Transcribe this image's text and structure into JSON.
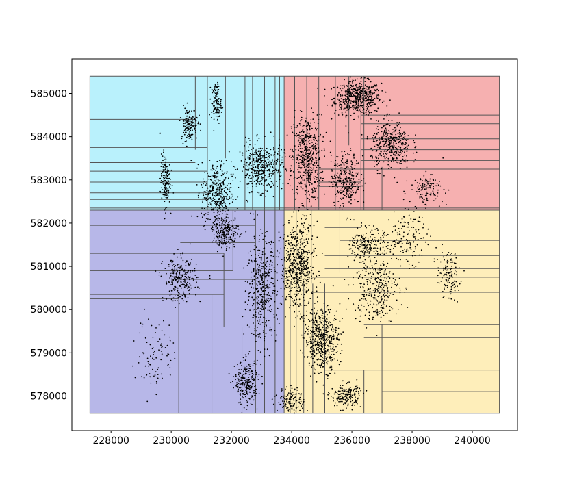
{
  "chart_data": {
    "type": "scatter",
    "title": "",
    "xlabel": "",
    "ylabel": "",
    "xlim": [
      226700,
      241500
    ],
    "ylim": [
      577200,
      585800
    ],
    "grid": false,
    "x_ticks": [
      228000,
      230000,
      232000,
      234000,
      236000,
      238000,
      240000
    ],
    "y_ticks": [
      578000,
      579000,
      580000,
      581000,
      582000,
      583000,
      584000,
      585000
    ],
    "extent": {
      "xmin": 227300,
      "xmax": 240900,
      "ymin": 577600,
      "ymax": 585400
    },
    "split_x": 233750,
    "point_color": "#000000",
    "partition_line_color": "#555555",
    "regions": [
      {
        "name": "upper-left",
        "color": "#7fe6f9",
        "x": [
          227300,
          233750
        ],
        "y": [
          582300,
          585400
        ]
      },
      {
        "name": "lower-left",
        "color": "#7b7bd6",
        "x": [
          227300,
          233750
        ],
        "y": [
          577600,
          582300
        ]
      },
      {
        "name": "upper-right",
        "color": "#ee6f6f",
        "x": [
          233750,
          240900
        ],
        "y": [
          582300,
          585400
        ]
      },
      {
        "name": "lower-right",
        "color": "#fde081",
        "x": [
          233750,
          240900
        ],
        "y": [
          577600,
          582300
        ]
      }
    ],
    "partition_lines": {
      "vertical": [
        {
          "x": 230800,
          "y": [
            583700,
            585400
          ]
        },
        {
          "x": 231200,
          "y": [
            582300,
            585400
          ]
        },
        {
          "x": 231800,
          "y": [
            583500,
            585400
          ]
        },
        {
          "x": 232450,
          "y": [
            582300,
            585400
          ]
        },
        {
          "x": 232700,
          "y": [
            582300,
            585400
          ]
        },
        {
          "x": 233100,
          "y": [
            582300,
            585400
          ]
        },
        {
          "x": 233450,
          "y": [
            582300,
            585400
          ]
        },
        {
          "x": 233600,
          "y": [
            582300,
            585400
          ]
        },
        {
          "x": 234100,
          "y": [
            582300,
            585400
          ]
        },
        {
          "x": 234500,
          "y": [
            582300,
            585400
          ]
        },
        {
          "x": 234900,
          "y": [
            582300,
            585400
          ]
        },
        {
          "x": 235450,
          "y": [
            582300,
            585400
          ]
        },
        {
          "x": 236400,
          "y": [
            582300,
            585400
          ]
        },
        {
          "x": 235900,
          "y": [
            583800,
            585400
          ]
        },
        {
          "x": 236300,
          "y": [
            582300,
            585000
          ]
        },
        {
          "x": 237000,
          "y": [
            582300,
            583300
          ]
        },
        {
          "x": 230250,
          "y": [
            577600,
            580350
          ]
        },
        {
          "x": 231350,
          "y": [
            577600,
            580350
          ]
        },
        {
          "x": 231750,
          "y": [
            579600,
            581300
          ]
        },
        {
          "x": 232050,
          "y": [
            580900,
            582300
          ]
        },
        {
          "x": 232350,
          "y": [
            577600,
            579600
          ]
        },
        {
          "x": 232800,
          "y": [
            577600,
            582300
          ]
        },
        {
          "x": 233100,
          "y": [
            577600,
            582300
          ]
        },
        {
          "x": 233450,
          "y": [
            577600,
            582300
          ]
        },
        {
          "x": 233950,
          "y": [
            577600,
            580600
          ]
        },
        {
          "x": 234150,
          "y": [
            577600,
            582300
          ]
        },
        {
          "x": 234400,
          "y": [
            577600,
            580600
          ]
        },
        {
          "x": 234700,
          "y": [
            577600,
            580600
          ]
        },
        {
          "x": 235100,
          "y": [
            577600,
            580600
          ]
        },
        {
          "x": 234650,
          "y": [
            580600,
            582300
          ]
        },
        {
          "x": 235600,
          "y": [
            580850,
            582300
          ]
        },
        {
          "x": 236400,
          "y": [
            577600,
            578600
          ]
        },
        {
          "x": 237000,
          "y": [
            577600,
            579650
          ]
        }
      ],
      "horizontal": [
        {
          "y": 584400,
          "x": [
            227300,
            230800
          ]
        },
        {
          "y": 583750,
          "x": [
            227300,
            231200
          ]
        },
        {
          "y": 583400,
          "x": [
            227300,
            230800
          ]
        },
        {
          "y": 583200,
          "x": [
            227300,
            231200
          ]
        },
        {
          "y": 582950,
          "x": [
            227300,
            231200
          ]
        },
        {
          "y": 582700,
          "x": [
            227300,
            231200
          ]
        },
        {
          "y": 582550,
          "x": [
            227300,
            231200
          ]
        },
        {
          "y": 582350,
          "x": [
            227300,
            240900
          ]
        },
        {
          "y": 582300,
          "x": [
            227300,
            240900
          ]
        },
        {
          "y": 581950,
          "x": [
            227300,
            232800
          ]
        },
        {
          "y": 581550,
          "x": [
            230300,
            232800
          ]
        },
        {
          "y": 581300,
          "x": [
            227300,
            231750
          ]
        },
        {
          "y": 580900,
          "x": [
            227300,
            232050
          ]
        },
        {
          "y": 580700,
          "x": [
            230000,
            232800
          ]
        },
        {
          "y": 580350,
          "x": [
            227300,
            231750
          ]
        },
        {
          "y": 580250,
          "x": [
            227300,
            230250
          ]
        },
        {
          "y": 579600,
          "x": [
            231350,
            232800
          ]
        },
        {
          "y": 584500,
          "x": [
            236300,
            240900
          ]
        },
        {
          "y": 584300,
          "x": [
            236300,
            240900
          ]
        },
        {
          "y": 583950,
          "x": [
            236300,
            240900
          ]
        },
        {
          "y": 583700,
          "x": [
            236300,
            240900
          ]
        },
        {
          "y": 583450,
          "x": [
            236300,
            240900
          ]
        },
        {
          "y": 583250,
          "x": [
            234900,
            240900
          ]
        },
        {
          "y": 582950,
          "x": [
            234900,
            236300
          ]
        },
        {
          "y": 582850,
          "x": [
            234900,
            236300
          ]
        },
        {
          "y": 581900,
          "x": [
            235100,
            236300
          ]
        },
        {
          "y": 581600,
          "x": [
            235600,
            240900
          ]
        },
        {
          "y": 581250,
          "x": [
            235100,
            240900
          ]
        },
        {
          "y": 580950,
          "x": [
            235100,
            240900
          ]
        },
        {
          "y": 580750,
          "x": [
            234650,
            240900
          ]
        },
        {
          "y": 580400,
          "x": [
            234650,
            240900
          ]
        },
        {
          "y": 579650,
          "x": [
            236400,
            240900
          ]
        },
        {
          "y": 579350,
          "x": [
            236400,
            240900
          ]
        },
        {
          "y": 578600,
          "x": [
            235100,
            240900
          ]
        },
        {
          "y": 578100,
          "x": [
            237000,
            240900
          ]
        }
      ]
    },
    "point_clusters": [
      {
        "cx": 236200,
        "cy": 584900,
        "sx": 700,
        "sy": 350,
        "n": 520
      },
      {
        "cx": 234500,
        "cy": 583500,
        "sx": 450,
        "sy": 900,
        "n": 520
      },
      {
        "cx": 233000,
        "cy": 583300,
        "sx": 650,
        "sy": 500,
        "n": 420
      },
      {
        "cx": 231500,
        "cy": 582700,
        "sx": 450,
        "sy": 650,
        "n": 360
      },
      {
        "cx": 230600,
        "cy": 584300,
        "sx": 250,
        "sy": 350,
        "n": 150
      },
      {
        "cx": 231500,
        "cy": 584800,
        "sx": 150,
        "sy": 400,
        "n": 120
      },
      {
        "cx": 229800,
        "cy": 583000,
        "sx": 150,
        "sy": 550,
        "n": 160
      },
      {
        "cx": 235800,
        "cy": 583000,
        "sx": 450,
        "sy": 550,
        "n": 300
      },
      {
        "cx": 237300,
        "cy": 583800,
        "sx": 600,
        "sy": 500,
        "n": 380
      },
      {
        "cx": 234200,
        "cy": 581000,
        "sx": 500,
        "sy": 900,
        "n": 600
      },
      {
        "cx": 235000,
        "cy": 579300,
        "sx": 500,
        "sy": 650,
        "n": 520
      },
      {
        "cx": 233000,
        "cy": 580500,
        "sx": 450,
        "sy": 1100,
        "n": 420
      },
      {
        "cx": 232500,
        "cy": 578300,
        "sx": 350,
        "sy": 450,
        "n": 250
      },
      {
        "cx": 230300,
        "cy": 580700,
        "sx": 500,
        "sy": 450,
        "n": 260
      },
      {
        "cx": 231800,
        "cy": 581800,
        "sx": 400,
        "sy": 350,
        "n": 220
      },
      {
        "cx": 236800,
        "cy": 580500,
        "sx": 700,
        "sy": 700,
        "n": 320
      },
      {
        "cx": 236500,
        "cy": 581500,
        "sx": 500,
        "sy": 350,
        "n": 200
      },
      {
        "cx": 235800,
        "cy": 578000,
        "sx": 450,
        "sy": 250,
        "n": 180
      },
      {
        "cx": 238500,
        "cy": 582800,
        "sx": 500,
        "sy": 300,
        "n": 120
      },
      {
        "cx": 239200,
        "cy": 580800,
        "sx": 350,
        "sy": 500,
        "n": 120
      },
      {
        "cx": 237800,
        "cy": 581700,
        "sx": 600,
        "sy": 600,
        "n": 140
      },
      {
        "cx": 229500,
        "cy": 579000,
        "sx": 600,
        "sy": 800,
        "n": 90
      },
      {
        "cx": 234000,
        "cy": 577900,
        "sx": 400,
        "sy": 250,
        "n": 140
      }
    ]
  }
}
